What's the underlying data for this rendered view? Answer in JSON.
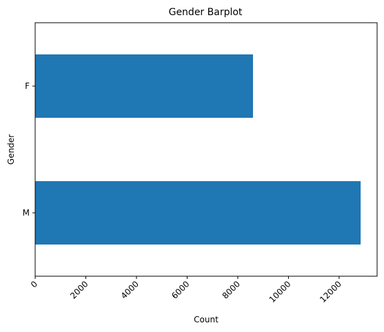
{
  "chart_data": {
    "type": "bar",
    "orientation": "horizontal",
    "title": "Gender Barplot",
    "xlabel": "Count",
    "ylabel": "Gender",
    "categories": [
      "F",
      "M"
    ],
    "values": [
      8600,
      12850
    ],
    "xlim": [
      0,
      13500
    ],
    "xticks": [
      "0",
      "2000",
      "4000",
      "6000",
      "8000",
      "10000",
      "12000"
    ],
    "xtick_rotation": 45,
    "grid": false,
    "legend": "none",
    "bar_color": "#1f77b4"
  }
}
